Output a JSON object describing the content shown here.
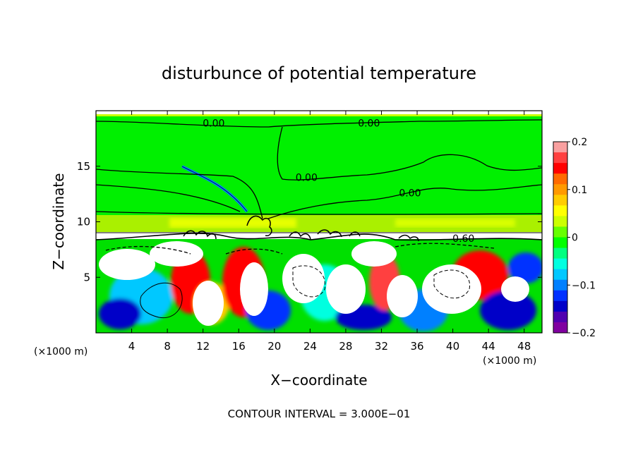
{
  "chart_data": {
    "type": "heatmap",
    "title": "disturbunce of potential temperature",
    "xlabel": "X−coordinate",
    "ylabel": "Z−coordinate",
    "x_unit_left": "(×1000 m)",
    "x_unit_right": "(×1000 m)",
    "footer": "CONTOUR INTERVAL = 3.000E−01",
    "xlim": [
      0,
      50
    ],
    "ylim": [
      0,
      20
    ],
    "x_ticks": [
      4,
      8,
      12,
      16,
      20,
      24,
      28,
      32,
      36,
      40,
      44,
      48
    ],
    "x_tick_labels": [
      "4",
      "8",
      "12",
      "16",
      "20",
      "24",
      "28",
      "32",
      "36",
      "40",
      "44",
      "48"
    ],
    "y_ticks": [
      5,
      10,
      15
    ],
    "y_tick_labels": [
      "5",
      "10",
      "15"
    ],
    "colorbar": {
      "range": [
        -0.2,
        0.2
      ],
      "ticks": [
        0.2,
        0.1,
        0,
        -0.1,
        -0.2
      ],
      "tick_labels": [
        "0.2",
        "0.1",
        "0",
        "−0.1",
        "−0.2"
      ],
      "colors": [
        "#f9a0a0",
        "#ff4040",
        "#ff0000",
        "#ff6a00",
        "#ff9900",
        "#ffcc00",
        "#ffff00",
        "#ccff00",
        "#66ff00",
        "#00ff00",
        "#00ff80",
        "#00ffe0",
        "#00c8ff",
        "#0080ff",
        "#0030ff",
        "#0000c8",
        "#5000b0",
        "#8000a0"
      ]
    },
    "contour_labels": [
      {
        "text": "0.00",
        "x": 13.2,
        "y": 18.9
      },
      {
        "text": "0.00",
        "x": 30.6,
        "y": 18.9
      },
      {
        "text": "0.00",
        "x": 23.6,
        "y": 14.0
      },
      {
        "text": "0.00",
        "x": 35.2,
        "y": 12.6
      },
      {
        "text": "0.60",
        "x": 41.2,
        "y": 8.5
      }
    ]
  }
}
